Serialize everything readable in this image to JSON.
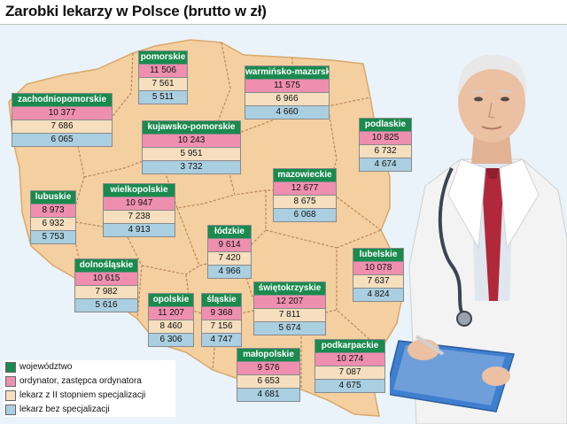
{
  "title": "Zarobki lekarzy w Polsce (brutto w zł)",
  "colors": {
    "wojewodztwo": "#1a8a4e",
    "ordynator": "#ef8fb0",
    "ii_stopien": "#f5dfbf",
    "bez_specjalizacji": "#a9cfe0",
    "country_fill": "#f4cfa0"
  },
  "regions": [
    {
      "name": "pomorskie",
      "ordynator": "11 506",
      "ii_stopien": "7 561",
      "bez_specjalizacji": "5 511"
    },
    {
      "name": "warmińsko-mazurskie",
      "ordynator": "11 575",
      "ii_stopien": "6 966",
      "bez_specjalizacji": "4 660"
    },
    {
      "name": "zachodniopomorskie",
      "ordynator": "10 377",
      "ii_stopien": "7 686",
      "bez_specjalizacji": "6 065"
    },
    {
      "name": "kujawsko-pomorskie",
      "ordynator": "10 243",
      "ii_stopien": "5 951",
      "bez_specjalizacji": "3 732"
    },
    {
      "name": "podlaskie",
      "ordynator": "10 825",
      "ii_stopien": "6 732",
      "bez_specjalizacji": "4 674"
    },
    {
      "name": "mazowieckie",
      "ordynator": "12 677",
      "ii_stopien": "8 675",
      "bez_specjalizacji": "6 068"
    },
    {
      "name": "lubuskie",
      "ordynator": "8 973",
      "ii_stopien": "6 932",
      "bez_specjalizacji": "5 753"
    },
    {
      "name": "wielkopolskie",
      "ordynator": "10 947",
      "ii_stopien": "7 238",
      "bez_specjalizacji": "4 913"
    },
    {
      "name": "łódzkie",
      "ordynator": "9 614",
      "ii_stopien": "7 420",
      "bez_specjalizacji": "4 966"
    },
    {
      "name": "lubelskie",
      "ordynator": "10 078",
      "ii_stopien": "7 637",
      "bez_specjalizacji": "4 824"
    },
    {
      "name": "dolnośląskie",
      "ordynator": "10 615",
      "ii_stopien": "7 982",
      "bez_specjalizacji": "5 616"
    },
    {
      "name": "opolskie",
      "ordynator": "11 207",
      "ii_stopien": "8 460",
      "bez_specjalizacji": "6 306"
    },
    {
      "name": "śląskie",
      "ordynator": "9 368",
      "ii_stopien": "7 156",
      "bez_specjalizacji": "4 747"
    },
    {
      "name": "świętokrzyskie",
      "ordynator": "12 207",
      "ii_stopien": "7 811",
      "bez_specjalizacji": "5 674"
    },
    {
      "name": "małopolskie",
      "ordynator": "9 576",
      "ii_stopien": "6 653",
      "bez_specjalizacji": "4 681"
    },
    {
      "name": "podkarpackie",
      "ordynator": "10 274",
      "ii_stopien": "7 087",
      "bez_specjalizacji": "4 675"
    }
  ],
  "legend": [
    {
      "label": "województwo",
      "color": "#1a8a4e"
    },
    {
      "label": "ordynator, zastępca ordynatora",
      "color": "#ef8fb0"
    },
    {
      "label": "lekarz z II stopniem specjalizacji",
      "color": "#f5dfbf"
    },
    {
      "label": "lekarz bez specjalizacji",
      "color": "#a9cfe0"
    }
  ]
}
